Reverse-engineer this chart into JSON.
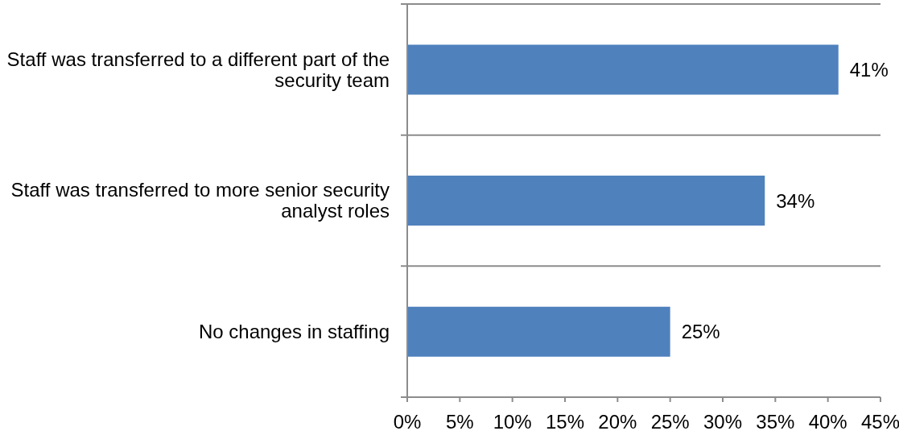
{
  "chart_data": {
    "type": "bar",
    "orientation": "horizontal",
    "categories": [
      "Staff was transferred to a different part of the security team",
      "Staff was transferred to more senior security analyst roles",
      "No changes in staffing"
    ],
    "values": [
      41,
      34,
      25
    ],
    "color": "#4f81bd",
    "xlim": [
      0,
      45
    ],
    "xticks": [
      {
        "value": 0,
        "label": "0%"
      },
      {
        "value": 5,
        "label": "5%"
      },
      {
        "value": 10,
        "label": "10%"
      },
      {
        "value": 15,
        "label": "15%"
      },
      {
        "value": 20,
        "label": "20%"
      },
      {
        "value": 25,
        "label": "25%"
      },
      {
        "value": 30,
        "label": "30%"
      },
      {
        "value": 35,
        "label": "35%"
      },
      {
        "value": 40,
        "label": "40%"
      },
      {
        "value": 45,
        "label": "45%"
      }
    ],
    "grid": "y",
    "value_labels": [
      "41%",
      "34%",
      "25%"
    ]
  }
}
